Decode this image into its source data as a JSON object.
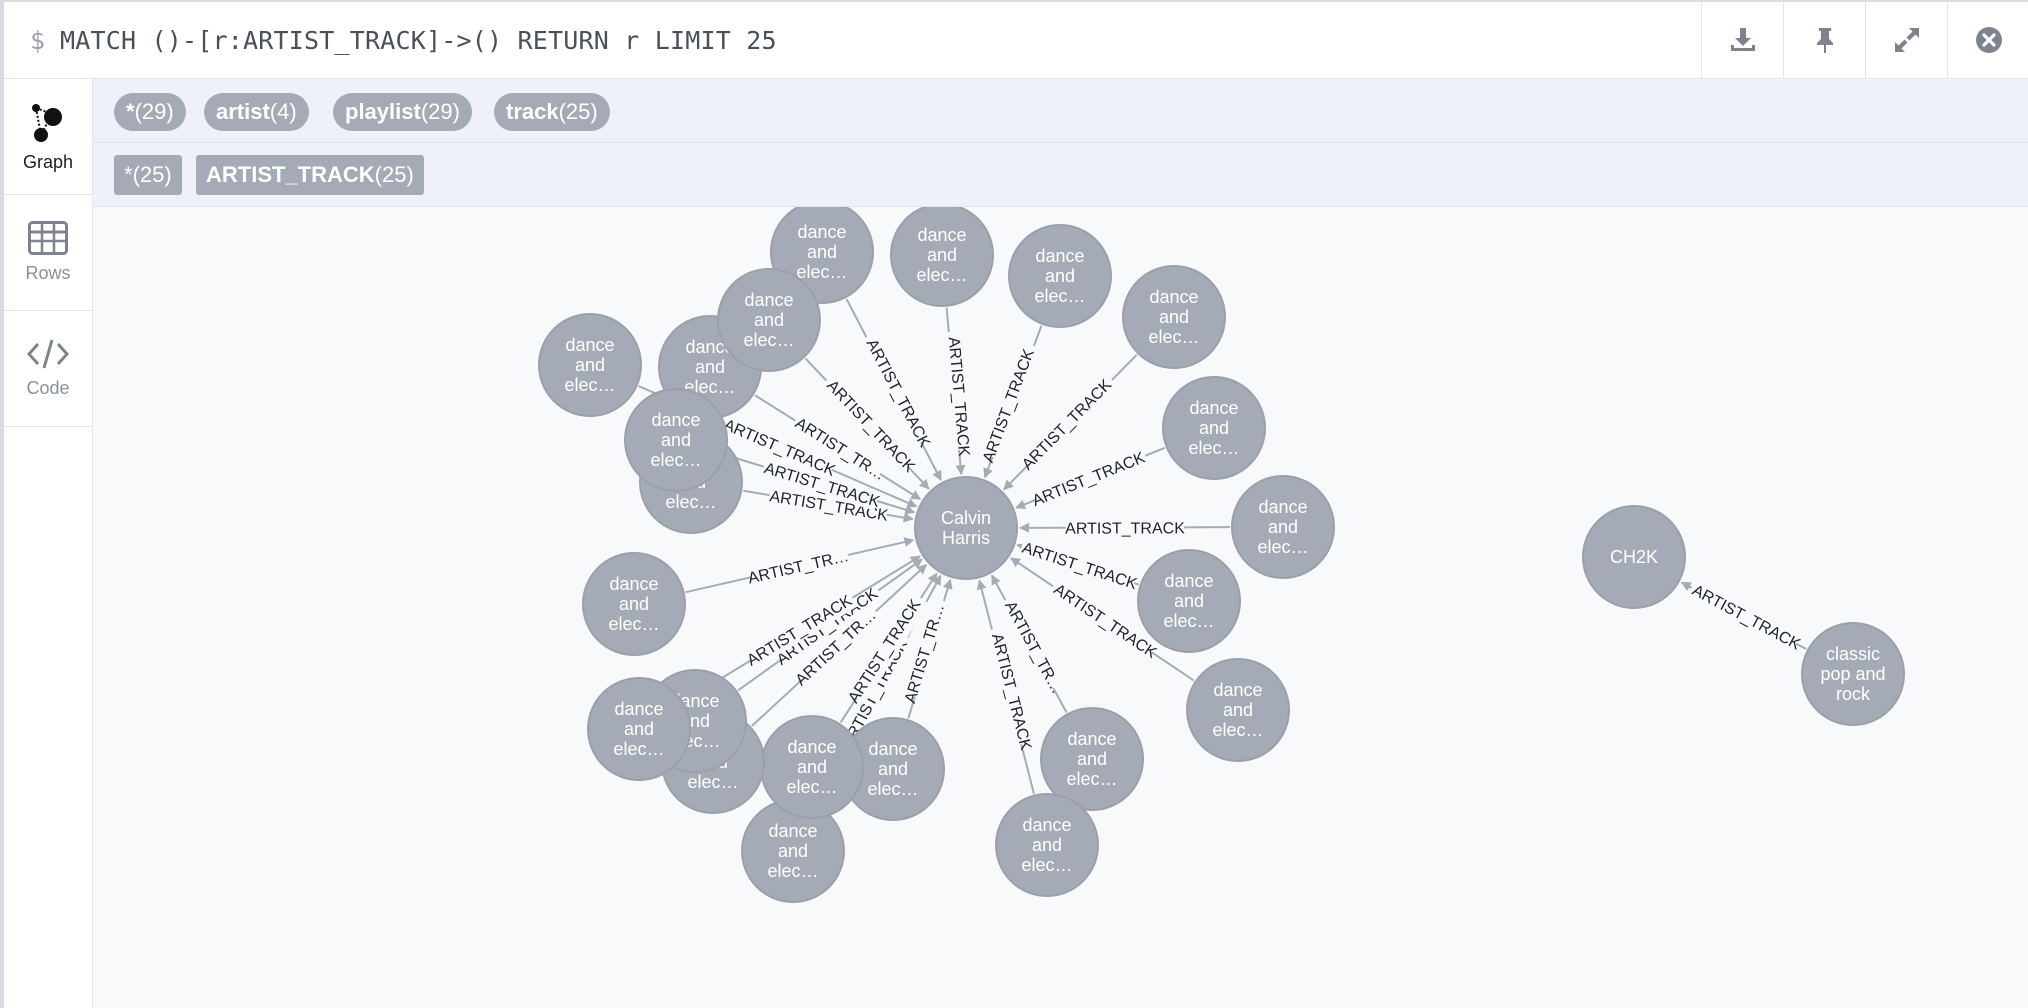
{
  "query": {
    "prompt": "$",
    "text": "MATCH ()-[r:ARTIST_TRACK]->() RETURN r LIMIT 25"
  },
  "header_actions": [
    {
      "icon": "download-icon"
    },
    {
      "icon": "pin-icon"
    },
    {
      "icon": "expand-icon"
    },
    {
      "icon": "close-icon"
    }
  ],
  "sidebar": {
    "items": [
      {
        "label": "Graph",
        "icon": "graph-icon"
      },
      {
        "label": "Rows",
        "icon": "table-icon"
      },
      {
        "label": "Code",
        "icon": "code-icon"
      }
    ]
  },
  "node_labels": [
    {
      "name": "*",
      "count": "(29)"
    },
    {
      "name": "artist",
      "count": "(4)"
    },
    {
      "name": "playlist",
      "count": "(29)"
    },
    {
      "name": "track",
      "count": "(25)"
    }
  ],
  "rel_types": [
    {
      "name": "*",
      "count": "(25)"
    },
    {
      "name": "ARTIST_TRACK",
      "count": "(25)"
    }
  ],
  "graph": {
    "colors": {
      "node": "#a5abb6",
      "node_border": "#9aa0ab",
      "edge": "#a5abb6",
      "canvas": "#f8f9fb"
    },
    "hub": [
      "Calvin",
      "Harris"
    ],
    "leaf": [
      "dance",
      "and",
      "elec…"
    ],
    "rel_label": "ARTIST_TRACK",
    "rel_label_short": "ARTIST_TR…",
    "pair_target": [
      "CH2K"
    ],
    "pair_source": [
      "classic",
      "pop and",
      "rock"
    ]
  }
}
